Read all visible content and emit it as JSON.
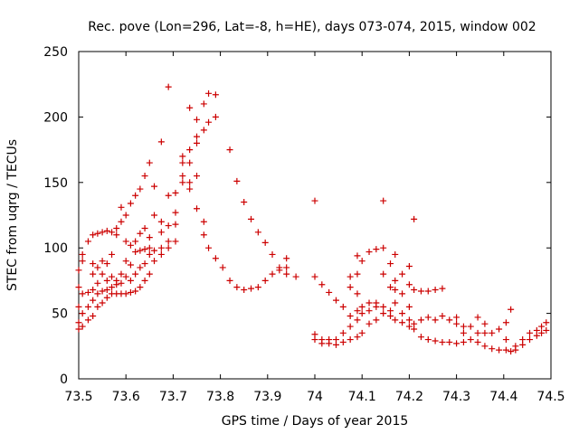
{
  "chart_data": {
    "type": "scatter",
    "title": "Rec. pove (Lon=296, Lat=-8, h=HE), days 073-074, 2015, window 002",
    "xlabel": "GPS time / Days of year 2015",
    "ylabel": "STEC from uqrg / TECUs",
    "xlim": [
      73.5,
      74.5
    ],
    "ylim": [
      0,
      250
    ],
    "x_ticks": [
      "73.5",
      "73.6",
      "73.7",
      "73.8",
      "73.9",
      "74",
      "74.1",
      "74.2",
      "74.3",
      "74.4",
      "74.5"
    ],
    "y_ticks": [
      "0",
      "50",
      "100",
      "150",
      "200",
      "250"
    ],
    "marker": "+",
    "marker_color": "#cc0000",
    "grid": false,
    "points": [
      [
        73.5,
        38
      ],
      [
        73.5,
        43
      ],
      [
        73.5,
        55
      ],
      [
        73.5,
        70
      ],
      [
        73.5,
        83
      ],
      [
        73.508,
        40
      ],
      [
        73.508,
        50
      ],
      [
        73.508,
        65
      ],
      [
        73.508,
        90
      ],
      [
        73.508,
        95
      ],
      [
        73.52,
        45
      ],
      [
        73.52,
        55
      ],
      [
        73.52,
        66
      ],
      [
        73.52,
        105
      ],
      [
        73.53,
        48
      ],
      [
        73.53,
        60
      ],
      [
        73.53,
        68
      ],
      [
        73.53,
        80
      ],
      [
        73.53,
        88
      ],
      [
        73.53,
        110
      ],
      [
        73.54,
        55
      ],
      [
        73.54,
        65
      ],
      [
        73.54,
        73
      ],
      [
        73.54,
        85
      ],
      [
        73.54,
        111
      ],
      [
        73.55,
        58
      ],
      [
        73.55,
        67
      ],
      [
        73.55,
        80
      ],
      [
        73.55,
        90
      ],
      [
        73.55,
        112
      ],
      [
        73.56,
        62
      ],
      [
        73.56,
        68
      ],
      [
        73.56,
        75
      ],
      [
        73.56,
        88
      ],
      [
        73.56,
        113
      ],
      [
        73.57,
        65
      ],
      [
        73.57,
        70
      ],
      [
        73.57,
        78
      ],
      [
        73.57,
        95
      ],
      [
        73.57,
        112
      ],
      [
        73.58,
        65
      ],
      [
        73.58,
        72
      ],
      [
        73.58,
        75
      ],
      [
        73.58,
        110
      ],
      [
        73.58,
        115
      ],
      [
        73.59,
        65
      ],
      [
        73.59,
        73
      ],
      [
        73.59,
        80
      ],
      [
        73.59,
        120
      ],
      [
        73.59,
        131
      ],
      [
        73.6,
        65
      ],
      [
        73.6,
        78
      ],
      [
        73.6,
        90
      ],
      [
        73.6,
        105
      ],
      [
        73.6,
        125
      ],
      [
        73.61,
        66
      ],
      [
        73.61,
        75
      ],
      [
        73.61,
        87
      ],
      [
        73.61,
        102
      ],
      [
        73.61,
        134
      ],
      [
        73.62,
        67
      ],
      [
        73.62,
        80
      ],
      [
        73.62,
        97
      ],
      [
        73.62,
        105
      ],
      [
        73.62,
        140
      ],
      [
        73.63,
        70
      ],
      [
        73.63,
        85
      ],
      [
        73.63,
        98
      ],
      [
        73.63,
        111
      ],
      [
        73.63,
        145
      ],
      [
        73.64,
        75
      ],
      [
        73.64,
        88
      ],
      [
        73.64,
        99
      ],
      [
        73.64,
        115
      ],
      [
        73.64,
        155
      ],
      [
        73.65,
        80
      ],
      [
        73.65,
        95
      ],
      [
        73.65,
        100
      ],
      [
        73.65,
        108
      ],
      [
        73.65,
        165
      ],
      [
        73.66,
        90
      ],
      [
        73.66,
        98
      ],
      [
        73.66,
        125
      ],
      [
        73.66,
        147
      ],
      [
        73.675,
        95
      ],
      [
        73.675,
        100
      ],
      [
        73.675,
        112
      ],
      [
        73.675,
        120
      ],
      [
        73.675,
        181
      ],
      [
        73.69,
        100
      ],
      [
        73.69,
        105
      ],
      [
        73.69,
        117
      ],
      [
        73.69,
        140
      ],
      [
        73.69,
        223
      ],
      [
        73.705,
        105
      ],
      [
        73.705,
        118
      ],
      [
        73.705,
        127
      ],
      [
        73.705,
        142
      ],
      [
        73.72,
        150
      ],
      [
        73.72,
        155
      ],
      [
        73.72,
        165
      ],
      [
        73.72,
        170
      ],
      [
        73.735,
        145
      ],
      [
        73.735,
        150
      ],
      [
        73.735,
        165
      ],
      [
        73.735,
        175
      ],
      [
        73.735,
        207
      ],
      [
        73.75,
        130
      ],
      [
        73.75,
        155
      ],
      [
        73.75,
        180
      ],
      [
        73.75,
        185
      ],
      [
        73.75,
        198
      ],
      [
        73.765,
        110
      ],
      [
        73.765,
        120
      ],
      [
        73.765,
        190
      ],
      [
        73.765,
        210
      ],
      [
        73.775,
        100
      ],
      [
        73.775,
        196
      ],
      [
        73.775,
        218
      ],
      [
        73.79,
        92
      ],
      [
        73.79,
        200
      ],
      [
        73.79,
        217
      ],
      [
        73.805,
        85
      ],
      [
        73.82,
        75
      ],
      [
        73.82,
        175
      ],
      [
        73.835,
        70
      ],
      [
        73.835,
        151
      ],
      [
        73.85,
        68
      ],
      [
        73.85,
        135
      ],
      [
        73.865,
        69
      ],
      [
        73.865,
        122
      ],
      [
        73.88,
        70
      ],
      [
        73.88,
        112
      ],
      [
        73.895,
        75
      ],
      [
        73.895,
        104
      ],
      [
        73.91,
        80
      ],
      [
        73.91,
        95
      ],
      [
        73.925,
        83
      ],
      [
        73.925,
        85
      ],
      [
        73.94,
        80
      ],
      [
        73.94,
        85
      ],
      [
        73.94,
        92
      ],
      [
        73.96,
        78
      ],
      [
        74.0,
        30
      ],
      [
        74.0,
        34
      ],
      [
        74.0,
        78
      ],
      [
        74.0,
        136
      ],
      [
        74.015,
        27
      ],
      [
        74.015,
        30
      ],
      [
        74.015,
        72
      ],
      [
        74.03,
        27
      ],
      [
        74.03,
        30
      ],
      [
        74.03,
        66
      ],
      [
        74.045,
        26
      ],
      [
        74.045,
        30
      ],
      [
        74.045,
        60
      ],
      [
        74.06,
        28
      ],
      [
        74.06,
        35
      ],
      [
        74.06,
        55
      ],
      [
        74.075,
        30
      ],
      [
        74.075,
        40
      ],
      [
        74.075,
        48
      ],
      [
        74.075,
        70
      ],
      [
        74.075,
        78
      ],
      [
        74.09,
        32
      ],
      [
        74.09,
        45
      ],
      [
        74.09,
        52
      ],
      [
        74.09,
        65
      ],
      [
        74.09,
        80
      ],
      [
        74.09,
        94
      ],
      [
        74.1,
        35
      ],
      [
        74.1,
        50
      ],
      [
        74.1,
        55
      ],
      [
        74.1,
        90
      ],
      [
        74.115,
        42
      ],
      [
        74.115,
        52
      ],
      [
        74.115,
        58
      ],
      [
        74.115,
        97
      ],
      [
        74.13,
        45
      ],
      [
        74.13,
        55
      ],
      [
        74.13,
        58
      ],
      [
        74.13,
        99
      ],
      [
        74.145,
        50
      ],
      [
        74.145,
        55
      ],
      [
        74.145,
        80
      ],
      [
        74.145,
        100
      ],
      [
        74.145,
        136
      ],
      [
        74.16,
        48
      ],
      [
        74.16,
        52
      ],
      [
        74.16,
        70
      ],
      [
        74.16,
        88
      ],
      [
        74.17,
        45
      ],
      [
        74.17,
        58
      ],
      [
        74.17,
        68
      ],
      [
        74.17,
        75
      ],
      [
        74.17,
        95
      ],
      [
        74.185,
        43
      ],
      [
        74.185,
        50
      ],
      [
        74.185,
        65
      ],
      [
        74.185,
        80
      ],
      [
        74.2,
        40
      ],
      [
        74.2,
        45
      ],
      [
        74.2,
        55
      ],
      [
        74.2,
        72
      ],
      [
        74.2,
        86
      ],
      [
        74.21,
        38
      ],
      [
        74.21,
        42
      ],
      [
        74.21,
        68
      ],
      [
        74.21,
        122
      ],
      [
        74.225,
        32
      ],
      [
        74.225,
        45
      ],
      [
        74.225,
        67
      ],
      [
        74.24,
        30
      ],
      [
        74.24,
        47
      ],
      [
        74.24,
        67
      ],
      [
        74.255,
        29
      ],
      [
        74.255,
        45
      ],
      [
        74.255,
        68
      ],
      [
        74.27,
        28
      ],
      [
        74.27,
        48
      ],
      [
        74.27,
        69
      ],
      [
        74.285,
        28
      ],
      [
        74.285,
        45
      ],
      [
        74.3,
        27
      ],
      [
        74.3,
        42
      ],
      [
        74.3,
        47
      ],
      [
        74.315,
        28
      ],
      [
        74.315,
        35
      ],
      [
        74.315,
        40
      ],
      [
        74.33,
        30
      ],
      [
        74.33,
        40
      ],
      [
        74.345,
        28
      ],
      [
        74.345,
        35
      ],
      [
        74.345,
        47
      ],
      [
        74.36,
        25
      ],
      [
        74.36,
        35
      ],
      [
        74.36,
        42
      ],
      [
        74.375,
        23
      ],
      [
        74.375,
        35
      ],
      [
        74.39,
        22
      ],
      [
        74.39,
        38
      ],
      [
        74.405,
        22
      ],
      [
        74.405,
        30
      ],
      [
        74.405,
        43
      ],
      [
        74.415,
        21
      ],
      [
        74.415,
        53
      ],
      [
        74.425,
        22
      ],
      [
        74.425,
        25
      ],
      [
        74.44,
        26
      ],
      [
        74.44,
        30
      ],
      [
        74.455,
        30
      ],
      [
        74.455,
        35
      ],
      [
        74.47,
        33
      ],
      [
        74.47,
        37
      ],
      [
        74.48,
        35
      ],
      [
        74.48,
        40
      ],
      [
        74.49,
        37
      ],
      [
        74.49,
        43
      ]
    ]
  }
}
